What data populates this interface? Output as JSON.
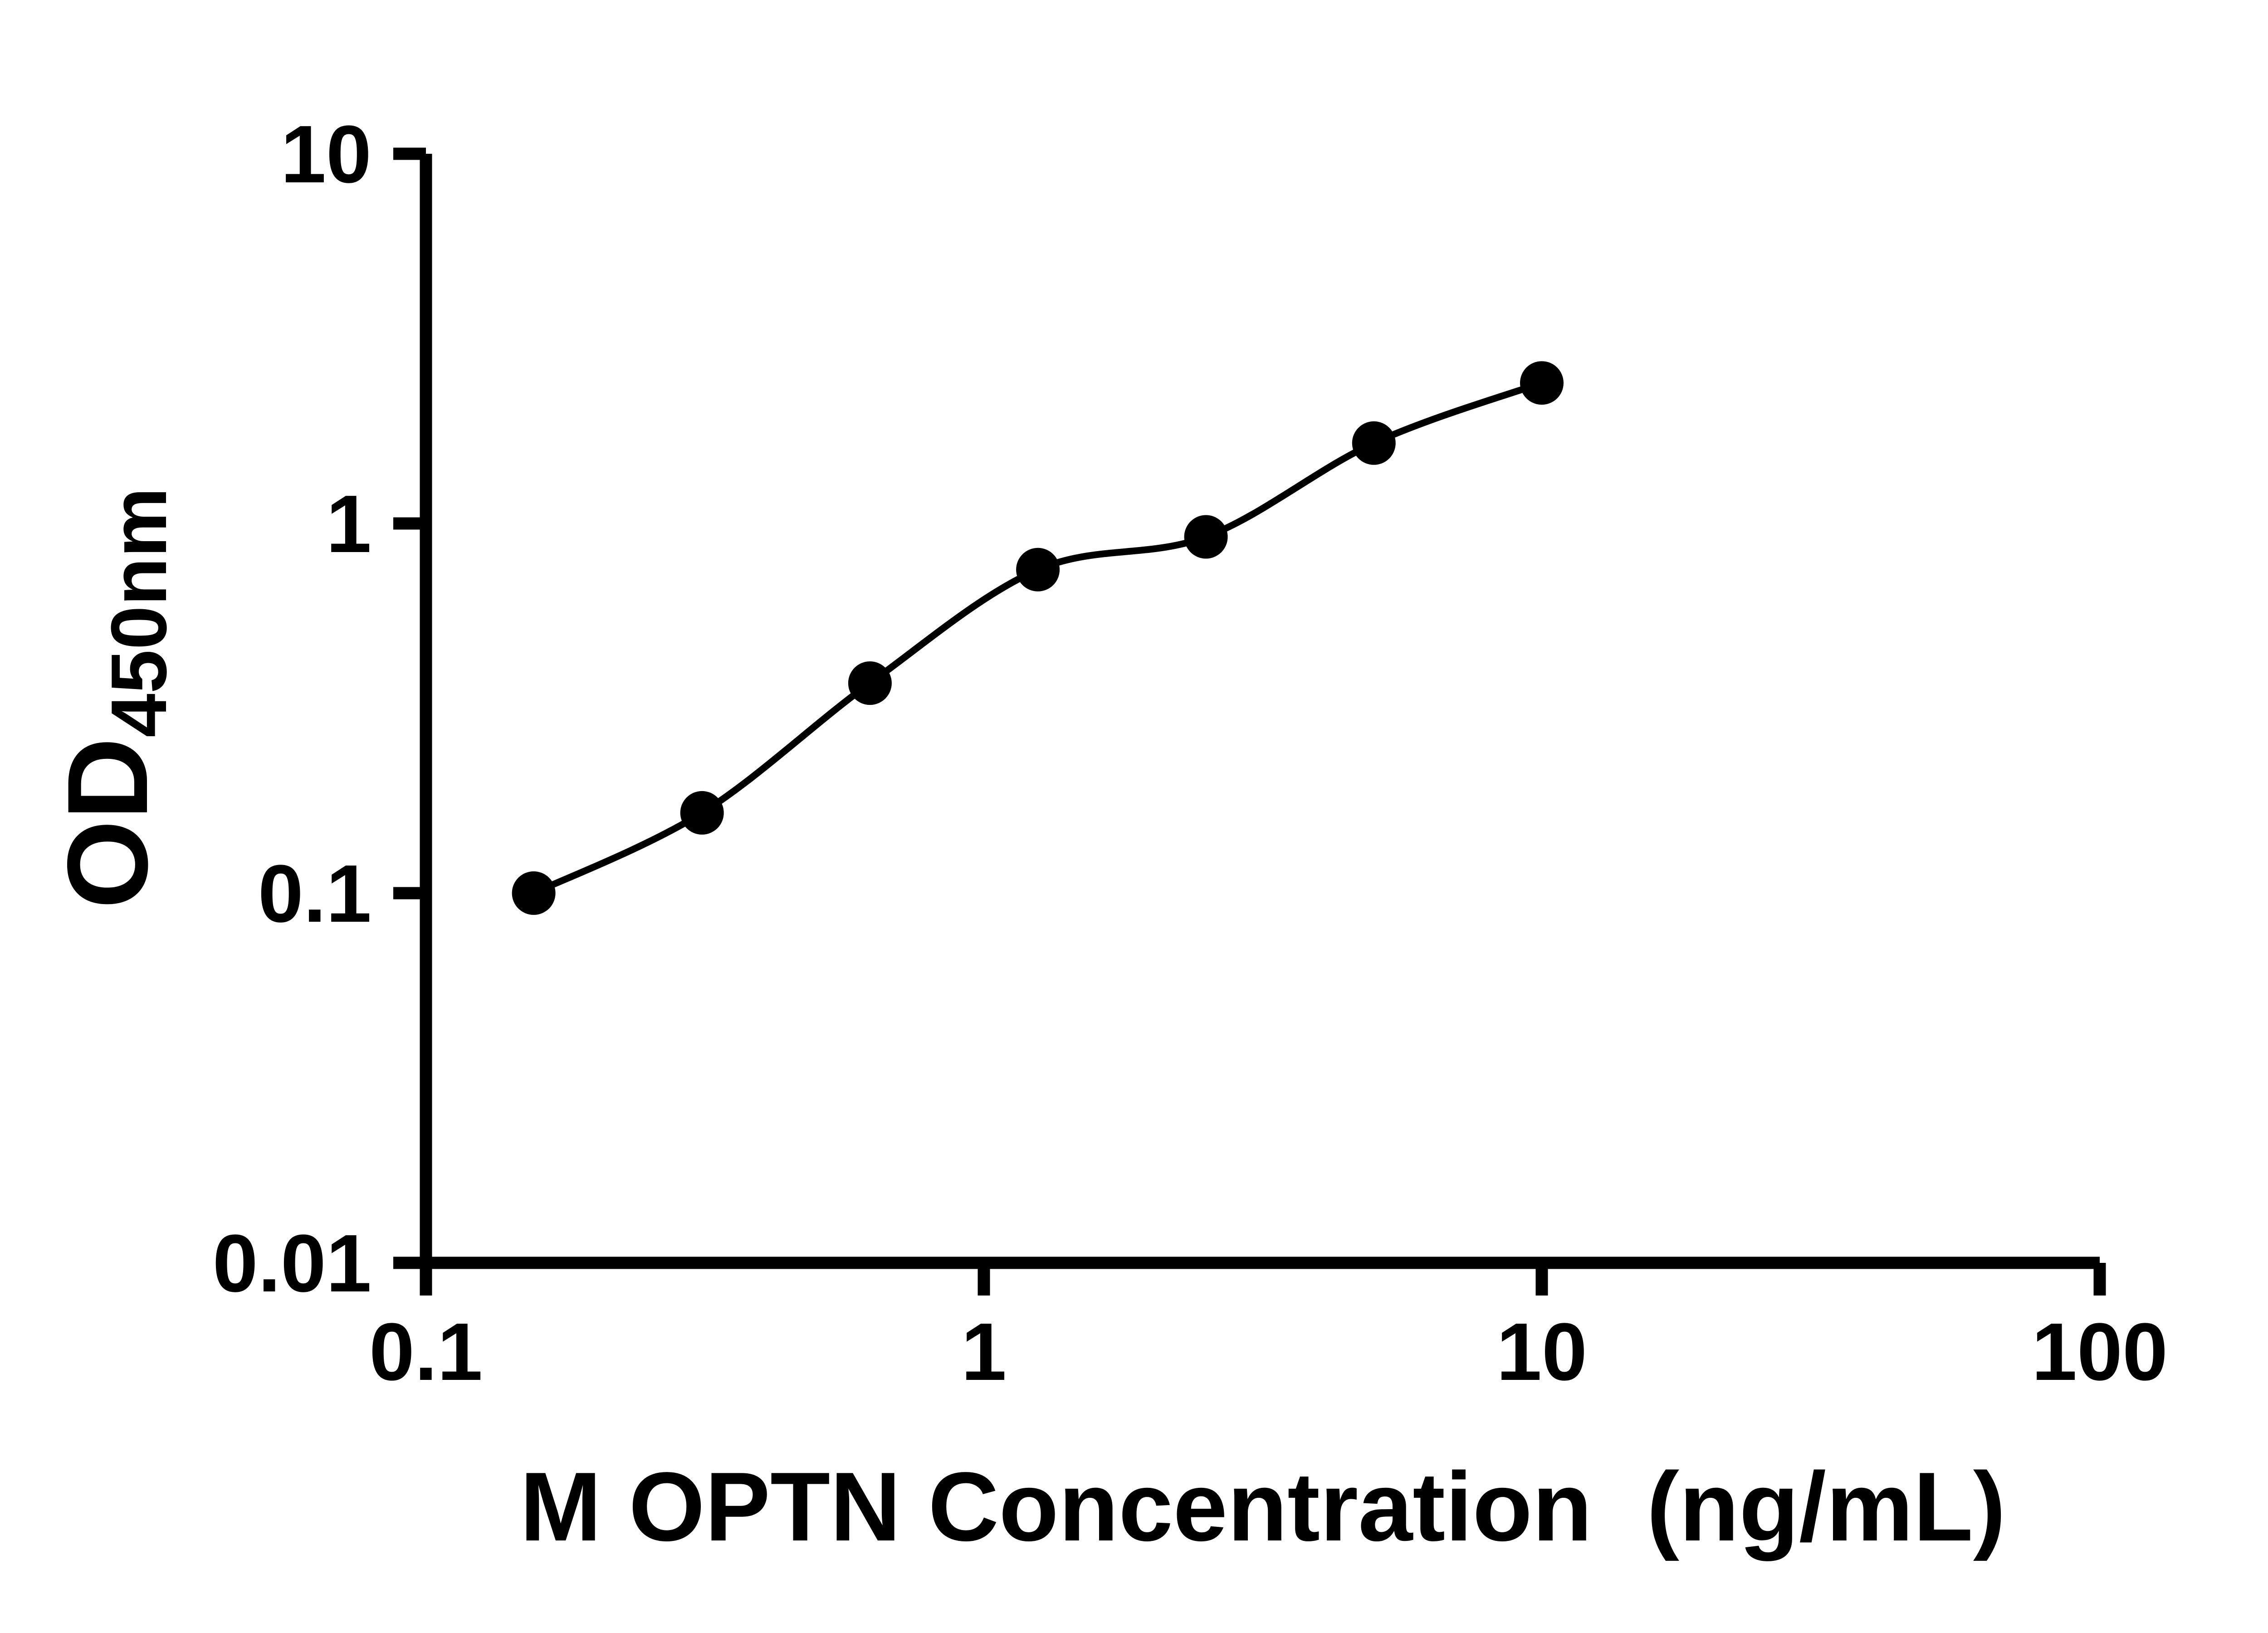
{
  "chart_data": {
    "type": "scatter",
    "title": "",
    "xlabel": "M OPTN Concentration  (ng/mL)",
    "ylabel_main": "OD",
    "ylabel_sub": "450nm",
    "x_scale": "log",
    "y_scale": "log",
    "xlim": [
      0.1,
      100
    ],
    "ylim": [
      0.01,
      10
    ],
    "x": [
      0.156,
      0.3125,
      0.625,
      1.25,
      2.5,
      5,
      10
    ],
    "y": [
      0.1,
      0.165,
      0.37,
      0.75,
      0.92,
      1.65,
      2.4
    ],
    "fit": "smooth standard-curve fit line through data points",
    "xticks": [
      {
        "value": 0.1,
        "label": "0.1"
      },
      {
        "value": 1,
        "label": "1"
      },
      {
        "value": 10,
        "label": "10"
      },
      {
        "value": 100,
        "label": "100"
      }
    ],
    "yticks": [
      {
        "value": 0.01,
        "label": "0.01"
      },
      {
        "value": 0.1,
        "label": "0.1"
      },
      {
        "value": 1,
        "label": "1"
      },
      {
        "value": 10,
        "label": "10"
      }
    ],
    "grid": false,
    "legend": "none",
    "marker_color": "#000000",
    "line_color": "#000000",
    "axis_color": "#000000",
    "text_color": "#000000",
    "background_color": "#ffffff"
  }
}
